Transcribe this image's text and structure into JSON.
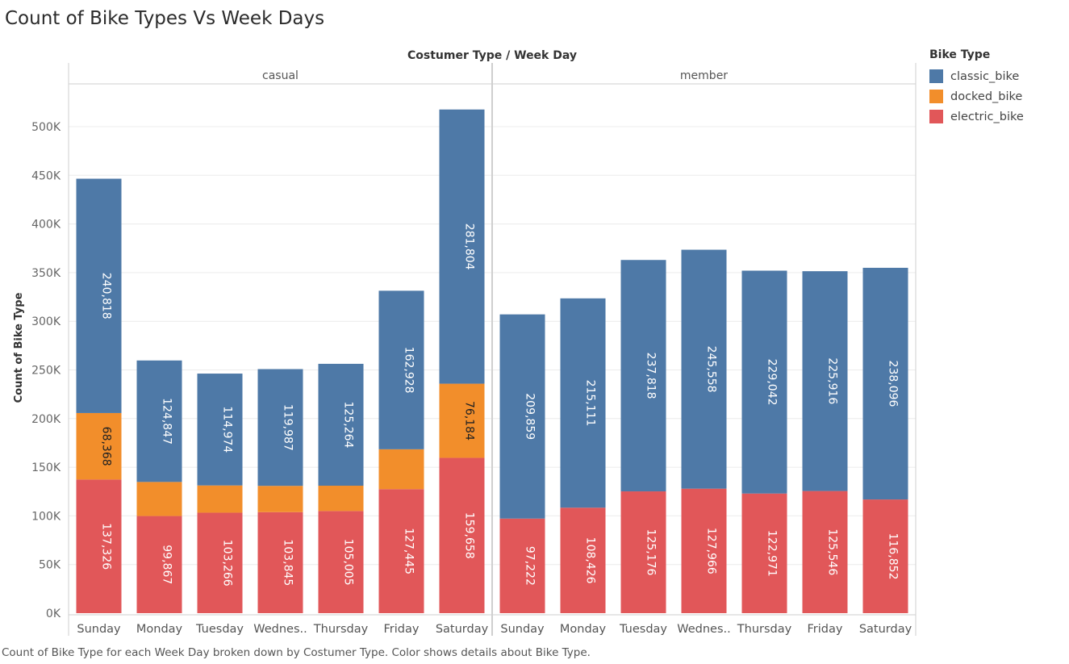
{
  "title": "Count of Bike Types Vs Week Days",
  "caption": "Count of Bike Type for each Week Day broken down by Costumer Type.  Color shows details about Bike Type.",
  "legend": {
    "title": "Bike Type",
    "items": [
      {
        "label": "classic_bike",
        "color": "#4e79a7"
      },
      {
        "label": "docked_bike",
        "color": "#f28e2b"
      },
      {
        "label": "electric_bike",
        "color": "#e15759"
      }
    ]
  },
  "chart_data": {
    "type": "bar",
    "stacked": true,
    "column_header": "Costumer Type  /  Week Day",
    "ylabel": "Count of Bike Type",
    "ylim": [
      0,
      550000
    ],
    "yticks": [
      0,
      50000,
      100000,
      150000,
      200000,
      250000,
      300000,
      350000,
      400000,
      450000,
      500000
    ],
    "ytick_labels": [
      "0K",
      "50K",
      "100K",
      "150K",
      "200K",
      "250K",
      "300K",
      "350K",
      "400K",
      "450K",
      "500K"
    ],
    "grid": true,
    "legend_position": "top-right",
    "panels": [
      {
        "name": "casual",
        "categories": [
          "Sunday",
          "Monday",
          "Tuesday",
          "Wednes..",
          "Thursday",
          "Friday",
          "Saturday"
        ],
        "series": [
          {
            "name": "electric_bike",
            "values": [
              137326,
              99867,
              103266,
              103845,
              105005,
              127445,
              159658
            ]
          },
          {
            "name": "docked_bike",
            "values": [
              68368,
              35000,
              28000,
              27000,
              26000,
              41000,
              76184
            ]
          },
          {
            "name": "classic_bike",
            "values": [
              240818,
              124847,
              114974,
              119987,
              125264,
              162928,
              281804
            ]
          }
        ],
        "labels": {
          "electric_bike": [
            "137,326",
            "99,867",
            "103,266",
            "103,845",
            "105,005",
            "127,445",
            "159,658"
          ],
          "docked_bike": [
            "68,368",
            "",
            "",
            "",
            "",
            "",
            "76,184"
          ],
          "classic_bike": [
            "240,818",
            "124,847",
            "114,974",
            "119,987",
            "125,264",
            "162,928",
            "281,804"
          ]
        }
      },
      {
        "name": "member",
        "categories": [
          "Sunday",
          "Monday",
          "Tuesday",
          "Wednes..",
          "Thursday",
          "Friday",
          "Saturday"
        ],
        "series": [
          {
            "name": "electric_bike",
            "values": [
              97222,
              108426,
              125176,
              127966,
              122971,
              125546,
              116852
            ]
          },
          {
            "name": "docked_bike",
            "values": [
              0,
              0,
              0,
              0,
              0,
              0,
              0
            ]
          },
          {
            "name": "classic_bike",
            "values": [
              209859,
              215111,
              237818,
              245558,
              229042,
              225916,
              238096
            ]
          }
        ],
        "labels": {
          "electric_bike": [
            "97,222",
            "108,426",
            "125,176",
            "127,966",
            "122,971",
            "125,546",
            "116,852"
          ],
          "docked_bike": [
            "",
            "",
            "",
            "",
            "",
            "",
            ""
          ],
          "classic_bike": [
            "209,859",
            "215,111",
            "237,818",
            "245,558",
            "229,042",
            "225,916",
            "238,096"
          ]
        }
      }
    ]
  }
}
